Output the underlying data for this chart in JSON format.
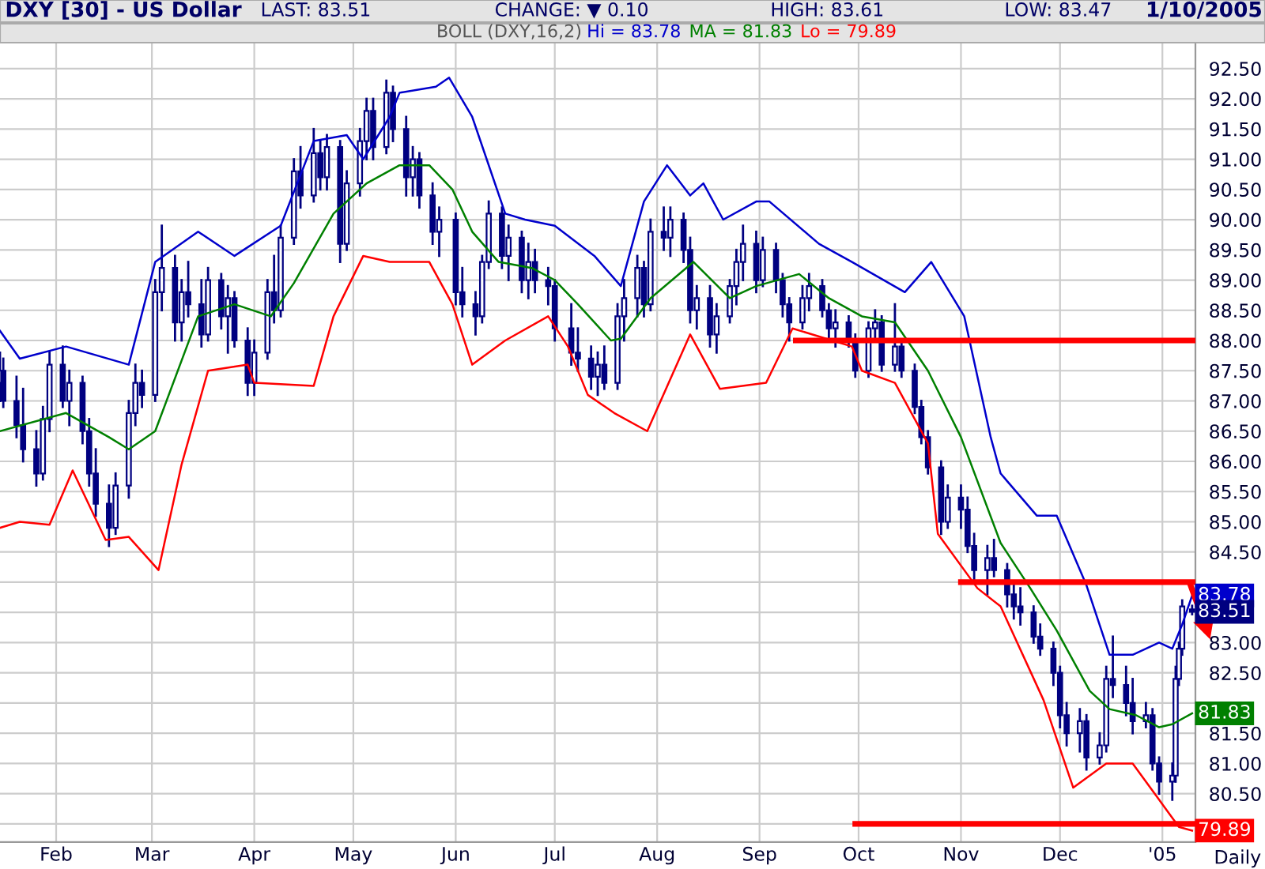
{
  "chart_data": {
    "type": "candlestick",
    "title": "DXY [30] - US Dollar",
    "subtitle": "BOLL (DXY,16,2)",
    "annotations": [
      "LAST: 83.51",
      "CHANGE: ▼ 0.10",
      "HIGH: 83.61",
      "LOW: 83.47",
      "1/10/2005",
      "Daily",
      {
        "text": "83.78",
        "x": "2005-01-10",
        "y": 83.78
      },
      {
        "text": "83.51",
        "x": "2005-01-10",
        "y": 83.51
      },
      {
        "text": "81.83",
        "x": "2005-01-10",
        "y": 81.83
      },
      {
        "text": "79.89",
        "x": "2005-01-10",
        "y": 79.89
      }
    ],
    "color": "#000080",
    "x": [
      "2004-01-15",
      "2004-01-16",
      "2004-01-20",
      "2004-01-22",
      "2004-01-26",
      "2004-01-28",
      "2004-01-30",
      "2004-02-03",
      "2004-02-05",
      "2004-02-09",
      "2004-02-11",
      "2004-02-13",
      "2004-02-17",
      "2004-02-19",
      "2004-02-23",
      "2004-02-25",
      "2004-02-27",
      "2004-03-02",
      "2004-03-04",
      "2004-03-08",
      "2004-03-10",
      "2004-03-12",
      "2004-03-16",
      "2004-03-18",
      "2004-03-22",
      "2004-03-24",
      "2004-03-26",
      "2004-03-30",
      "2004-04-01",
      "2004-04-05",
      "2004-04-07",
      "2004-04-09",
      "2004-04-13",
      "2004-04-15",
      "2004-04-19",
      "2004-04-21",
      "2004-04-23",
      "2004-04-27",
      "2004-04-29",
      "2004-05-03",
      "2004-05-05",
      "2004-05-07",
      "2004-05-11",
      "2004-05-13",
      "2004-05-17",
      "2004-05-19",
      "2004-05-21",
      "2004-05-25",
      "2004-05-27",
      "2004-06-01",
      "2004-06-03",
      "2004-06-07",
      "2004-06-09",
      "2004-06-11",
      "2004-06-15",
      "2004-06-17",
      "2004-06-21",
      "2004-06-23",
      "2004-06-25",
      "2004-06-29",
      "2004-07-01",
      "2004-07-06",
      "2004-07-08",
      "2004-07-12",
      "2004-07-14",
      "2004-07-16",
      "2004-07-20",
      "2004-07-22",
      "2004-07-26",
      "2004-07-28",
      "2004-07-30",
      "2004-08-03",
      "2004-08-05",
      "2004-08-09",
      "2004-08-11",
      "2004-08-13",
      "2004-08-17",
      "2004-08-19",
      "2004-08-23",
      "2004-08-25",
      "2004-08-27",
      "2004-08-31",
      "2004-09-02",
      "2004-09-06",
      "2004-09-08",
      "2004-09-10",
      "2004-09-14",
      "2004-09-16",
      "2004-09-20",
      "2004-09-22",
      "2004-09-24",
      "2004-09-28",
      "2004-09-30",
      "2004-10-04",
      "2004-10-06",
      "2004-10-08",
      "2004-10-12",
      "2004-10-14",
      "2004-10-18",
      "2004-10-20",
      "2004-10-22",
      "2004-10-26",
      "2004-10-28",
      "2004-11-01",
      "2004-11-03",
      "2004-11-05",
      "2004-11-09",
      "2004-11-11",
      "2004-11-15",
      "2004-11-17",
      "2004-11-19",
      "2004-11-23",
      "2004-11-25",
      "2004-11-29",
      "2004-12-01",
      "2004-12-03",
      "2004-12-07",
      "2004-12-09",
      "2004-12-13",
      "2004-12-15",
      "2004-12-17",
      "2004-12-21",
      "2004-12-23",
      "2004-12-27",
      "2004-12-29",
      "2004-12-31",
      "2005-01-04",
      "2005-01-05",
      "2005-01-06",
      "2005-01-07",
      "2005-01-10"
    ],
    "ohlc": [
      [
        87.3,
        87.8,
        87.0,
        87.5
      ],
      [
        87.5,
        87.7,
        86.9,
        87.0
      ],
      [
        87.0,
        87.4,
        86.4,
        86.6
      ],
      [
        86.6,
        87.2,
        86.0,
        86.2
      ],
      [
        86.2,
        86.5,
        85.6,
        85.8
      ],
      [
        85.8,
        86.9,
        85.7,
        86.7
      ],
      [
        86.7,
        87.8,
        86.5,
        87.6
      ],
      [
        87.6,
        87.9,
        86.9,
        87.0
      ],
      [
        87.0,
        87.5,
        86.6,
        87.3
      ],
      [
        87.3,
        87.4,
        86.3,
        86.5
      ],
      [
        86.5,
        86.7,
        85.6,
        85.8
      ],
      [
        85.8,
        86.2,
        85.1,
        85.3
      ],
      [
        85.3,
        85.6,
        84.6,
        84.9
      ],
      [
        84.9,
        85.8,
        84.8,
        85.6
      ],
      [
        85.6,
        87.0,
        85.4,
        86.8
      ],
      [
        86.8,
        87.6,
        86.6,
        87.3
      ],
      [
        87.3,
        87.5,
        86.9,
        87.1
      ],
      [
        87.1,
        89.0,
        87.0,
        88.8
      ],
      [
        88.8,
        89.9,
        88.5,
        89.2
      ],
      [
        89.2,
        89.4,
        88.0,
        88.3
      ],
      [
        88.3,
        89.0,
        88.0,
        88.8
      ],
      [
        88.8,
        89.3,
        88.4,
        88.6
      ],
      [
        88.6,
        89.0,
        87.9,
        88.1
      ],
      [
        88.1,
        89.2,
        88.0,
        89.0
      ],
      [
        89.0,
        89.1,
        88.2,
        88.4
      ],
      [
        88.4,
        88.9,
        87.8,
        88.7
      ],
      [
        88.7,
        88.8,
        87.9,
        88.0
      ],
      [
        88.0,
        88.2,
        87.1,
        87.3
      ],
      [
        87.3,
        88.0,
        87.1,
        87.8
      ],
      [
        87.8,
        89.0,
        87.7,
        88.8
      ],
      [
        88.8,
        89.4,
        88.3,
        88.5
      ],
      [
        88.5,
        89.9,
        88.4,
        89.7
      ],
      [
        89.7,
        91.0,
        89.6,
        90.8
      ],
      [
        90.8,
        91.2,
        90.2,
        90.4
      ],
      [
        90.4,
        91.5,
        90.3,
        91.1
      ],
      [
        91.1,
        91.3,
        90.5,
        90.7
      ],
      [
        90.7,
        91.4,
        90.5,
        91.2
      ],
      [
        91.2,
        91.3,
        89.3,
        89.6
      ],
      [
        89.6,
        90.8,
        89.5,
        90.6
      ],
      [
        90.6,
        91.5,
        90.4,
        91.3
      ],
      [
        91.3,
        92.0,
        91.0,
        91.8
      ],
      [
        91.8,
        92.0,
        91.0,
        91.2
      ],
      [
        91.2,
        92.3,
        91.1,
        92.1
      ],
      [
        92.1,
        92.2,
        91.3,
        91.5
      ],
      [
        91.5,
        91.7,
        90.4,
        90.7
      ],
      [
        90.7,
        91.2,
        90.4,
        91.0
      ],
      [
        91.0,
        91.1,
        90.2,
        90.4
      ],
      [
        90.4,
        90.6,
        89.6,
        89.8
      ],
      [
        89.8,
        90.2,
        89.4,
        90.0
      ],
      [
        90.0,
        90.1,
        88.6,
        88.8
      ],
      [
        88.8,
        89.2,
        88.4,
        88.6
      ],
      [
        88.6,
        88.8,
        88.1,
        88.4
      ],
      [
        88.4,
        89.4,
        88.3,
        89.3
      ],
      [
        89.3,
        90.3,
        89.2,
        90.1
      ],
      [
        90.1,
        90.2,
        89.2,
        89.4
      ],
      [
        89.4,
        89.9,
        89.0,
        89.7
      ],
      [
        89.7,
        89.8,
        88.8,
        89.0
      ],
      [
        89.0,
        89.6,
        88.7,
        89.3
      ],
      [
        89.3,
        89.5,
        88.8,
        89.0
      ],
      [
        89.0,
        89.2,
        88.6,
        88.9
      ],
      [
        88.9,
        89.0,
        88.0,
        88.2
      ],
      [
        88.2,
        88.6,
        87.6,
        87.8
      ],
      [
        87.8,
        88.2,
        87.5,
        87.7
      ],
      [
        87.7,
        87.9,
        87.2,
        87.4
      ],
      [
        87.4,
        87.8,
        87.1,
        87.6
      ],
      [
        87.6,
        87.9,
        87.2,
        87.3
      ],
      [
        87.3,
        88.6,
        87.2,
        88.4
      ],
      [
        88.4,
        89.0,
        88.0,
        88.7
      ],
      [
        88.7,
        89.4,
        88.4,
        89.2
      ],
      [
        89.2,
        89.3,
        88.4,
        88.6
      ],
      [
        88.6,
        90.0,
        88.5,
        89.8
      ],
      [
        89.8,
        90.2,
        89.5,
        89.7
      ],
      [
        89.7,
        90.2,
        89.4,
        90.0
      ],
      [
        90.0,
        90.1,
        89.3,
        89.5
      ],
      [
        89.5,
        89.7,
        88.3,
        88.5
      ],
      [
        88.5,
        88.9,
        88.2,
        88.7
      ],
      [
        88.7,
        88.9,
        87.9,
        88.1
      ],
      [
        88.1,
        88.6,
        87.8,
        88.4
      ],
      [
        88.4,
        89.0,
        88.3,
        88.9
      ],
      [
        88.9,
        89.5,
        88.6,
        89.3
      ],
      [
        89.3,
        89.9,
        89.0,
        89.6
      ],
      [
        89.6,
        89.8,
        88.8,
        89.0
      ],
      [
        89.0,
        89.7,
        88.9,
        89.5
      ],
      [
        89.5,
        89.6,
        88.8,
        89.0
      ],
      [
        89.0,
        89.1,
        88.4,
        88.6
      ],
      [
        88.6,
        88.7,
        88.0,
        88.3
      ],
      [
        88.3,
        88.9,
        88.2,
        88.7
      ],
      [
        88.7,
        89.1,
        88.5,
        88.9
      ],
      [
        88.9,
        89.0,
        88.4,
        88.5
      ],
      [
        88.5,
        88.6,
        88.0,
        88.2
      ],
      [
        88.2,
        88.5,
        87.9,
        88.3
      ],
      [
        88.3,
        88.4,
        87.9,
        88.0
      ],
      [
        88.0,
        88.1,
        87.4,
        87.5
      ],
      [
        87.5,
        88.3,
        87.4,
        88.2
      ],
      [
        88.2,
        88.5,
        88.0,
        88.3
      ],
      [
        88.3,
        88.4,
        87.5,
        87.6
      ],
      [
        87.6,
        88.6,
        87.5,
        87.9
      ],
      [
        87.9,
        88.0,
        87.4,
        87.5
      ],
      [
        87.5,
        87.6,
        86.8,
        86.9
      ],
      [
        86.9,
        87.0,
        86.3,
        86.4
      ],
      [
        86.4,
        86.5,
        85.8,
        85.9
      ],
      [
        85.9,
        86.0,
        84.8,
        85.0
      ],
      [
        85.0,
        85.6,
        84.9,
        85.4
      ],
      [
        85.4,
        85.6,
        84.9,
        85.2
      ],
      [
        85.2,
        85.4,
        84.5,
        84.6
      ],
      [
        84.6,
        84.8,
        84.0,
        84.2
      ],
      [
        84.2,
        84.6,
        83.8,
        84.4
      ],
      [
        84.4,
        84.7,
        84.1,
        84.2
      ],
      [
        84.2,
        84.3,
        83.6,
        83.8
      ],
      [
        83.8,
        84.0,
        83.4,
        83.6
      ],
      [
        83.6,
        83.9,
        83.3,
        83.5
      ],
      [
        83.5,
        83.6,
        83.0,
        83.1
      ],
      [
        83.1,
        83.3,
        82.8,
        82.9
      ],
      [
        82.9,
        83.0,
        82.3,
        82.5
      ],
      [
        82.5,
        82.6,
        81.6,
        81.8
      ],
      [
        81.8,
        82.0,
        81.3,
        81.5
      ],
      [
        81.5,
        81.9,
        81.2,
        81.7
      ],
      [
        81.7,
        81.8,
        80.9,
        81.1
      ],
      [
        81.1,
        81.5,
        81.0,
        81.3
      ],
      [
        81.3,
        82.6,
        81.2,
        82.4
      ],
      [
        82.4,
        83.1,
        82.1,
        82.3
      ],
      [
        82.3,
        82.6,
        81.8,
        82.0
      ],
      [
        82.0,
        82.4,
        81.5,
        81.7
      ],
      [
        81.7,
        82.0,
        81.6,
        81.8
      ],
      [
        81.8,
        81.9,
        80.9,
        81.0
      ],
      [
        81.0,
        81.1,
        80.5,
        80.7
      ],
      [
        80.7,
        81.0,
        80.4,
        80.8
      ],
      [
        80.8,
        82.6,
        80.7,
        82.4
      ],
      [
        82.4,
        83.0,
        82.3,
        82.9
      ],
      [
        82.9,
        83.7,
        82.8,
        83.6
      ],
      [
        83.55,
        83.61,
        83.47,
        83.51
      ]
    ],
    "series": [
      {
        "type": "line",
        "name": "Hi = 83.78",
        "color": "#0000cc",
        "x": [
          "2004-01-15",
          "2004-01-21",
          "2004-02-04",
          "2004-02-23",
          "2004-03-02",
          "2004-03-15",
          "2004-03-26",
          "2004-04-09",
          "2004-04-19",
          "2004-04-29",
          "2004-05-04",
          "2004-05-12",
          "2004-05-15",
          "2004-05-26",
          "2004-05-30",
          "2004-06-06",
          "2004-06-16",
          "2004-06-22",
          "2004-07-01",
          "2004-07-13",
          "2004-07-21",
          "2004-07-28",
          "2004-08-04",
          "2004-08-11",
          "2004-08-15",
          "2004-08-21",
          "2004-08-31",
          "2004-09-04",
          "2004-09-19",
          "2004-09-29",
          "2004-10-15",
          "2004-10-23",
          "2004-11-02",
          "2004-11-10",
          "2004-11-13",
          "2004-11-24",
          "2004-11-30",
          "2004-12-09",
          "2004-12-16",
          "2004-12-23",
          "2004-12-31",
          "2005-01-04",
          "2005-01-07",
          "2005-01-10"
        ],
        "values": [
          88.16,
          87.7,
          87.9,
          87.6,
          89.3,
          89.8,
          89.4,
          89.9,
          91.3,
          91.4,
          91.0,
          91.7,
          92.1,
          92.2,
          92.35,
          91.7,
          90.1,
          90.0,
          89.9,
          89.4,
          88.9,
          90.3,
          90.9,
          90.4,
          90.6,
          90.0,
          90.3,
          90.3,
          89.6,
          89.3,
          88.8,
          89.3,
          88.4,
          86.4,
          85.8,
          85.1,
          85.1,
          83.95,
          82.8,
          82.8,
          83.0,
          82.9,
          83.3,
          83.78
        ]
      },
      {
        "type": "line",
        "name": "MA = 81.83",
        "color": "#008000",
        "x": [
          "2004-01-15",
          "2004-02-04",
          "2004-02-17",
          "2004-02-23",
          "2004-03-02",
          "2004-03-15",
          "2004-03-26",
          "2004-04-06",
          "2004-04-13",
          "2004-04-25",
          "2004-05-05",
          "2004-05-15",
          "2004-05-24",
          "2004-05-31",
          "2004-06-06",
          "2004-06-14",
          "2004-06-24",
          "2004-07-01",
          "2004-07-08",
          "2004-07-18",
          "2004-07-21",
          "2004-07-30",
          "2004-08-12",
          "2004-08-23",
          "2004-08-31",
          "2004-09-13",
          "2004-09-22",
          "2004-10-02",
          "2004-10-12",
          "2004-10-22",
          "2004-11-01",
          "2004-11-13",
          "2004-11-22",
          "2004-11-30",
          "2004-12-10",
          "2004-12-16",
          "2004-12-24",
          "2004-12-31",
          "2005-01-04",
          "2005-01-10"
        ],
        "values": [
          86.5,
          86.8,
          86.4,
          86.2,
          86.5,
          88.4,
          88.6,
          88.4,
          88.95,
          90.1,
          90.6,
          90.9,
          90.9,
          90.5,
          89.8,
          89.3,
          89.2,
          89.0,
          88.6,
          88.0,
          88.03,
          88.7,
          89.3,
          88.7,
          88.9,
          89.1,
          88.7,
          88.4,
          88.3,
          87.5,
          86.4,
          84.65,
          83.9,
          83.2,
          82.2,
          81.9,
          81.8,
          81.6,
          81.65,
          81.83
        ]
      },
      {
        "type": "line",
        "name": "Lo = 79.89",
        "color": "#ff0000",
        "x": [
          "2004-01-15",
          "2004-01-21",
          "2004-01-30",
          "2004-02-06",
          "2004-02-16",
          "2004-02-23",
          "2004-03-03",
          "2004-03-10",
          "2004-03-18",
          "2004-03-30",
          "2004-04-01",
          "2004-04-19",
          "2004-04-25",
          "2004-05-04",
          "2004-05-12",
          "2004-05-24",
          "2004-05-31",
          "2004-06-06",
          "2004-06-16",
          "2004-06-29",
          "2004-07-05",
          "2004-07-11",
          "2004-07-19",
          "2004-07-29",
          "2004-08-11",
          "2004-08-20",
          "2004-09-03",
          "2004-09-11",
          "2004-09-29",
          "2004-10-02",
          "2004-10-12",
          "2004-10-22",
          "2004-10-25",
          "2004-11-06",
          "2004-11-13",
          "2004-11-26",
          "2004-12-05",
          "2004-12-15",
          "2004-12-23",
          "2004-12-31",
          "2005-01-06",
          "2005-01-10"
        ],
        "values": [
          84.9,
          85.0,
          84.95,
          85.85,
          84.7,
          84.75,
          84.2,
          85.95,
          87.5,
          87.6,
          87.3,
          87.25,
          88.4,
          89.4,
          89.3,
          89.3,
          88.6,
          87.6,
          88.0,
          88.4,
          87.9,
          87.1,
          86.8,
          86.5,
          88.1,
          87.2,
          87.3,
          88.2,
          87.9,
          87.5,
          87.3,
          86.3,
          84.8,
          83.9,
          83.6,
          82.05,
          80.6,
          81.0,
          81.0,
          80.4,
          79.95,
          79.89
        ]
      },
      {
        "type": "line",
        "color": "#ff0000",
        "x": [
          "2004-09-12",
          "2005-01-11"
        ],
        "values": [
          88.0,
          88.0
        ]
      },
      {
        "type": "line",
        "color": "#ff0000",
        "x": [
          "2004-11-01",
          "2005-01-11"
        ],
        "values": [
          84.0,
          84.0
        ]
      },
      {
        "type": "line",
        "color": "#ff0000",
        "x": [
          "2004-09-30",
          "2005-01-11"
        ],
        "values": [
          80.0,
          80.0
        ]
      }
    ],
    "xlim": [
      "2004-01-15",
      "2005-01-11"
    ],
    "xticks": [
      {
        "value": "2004-02-01",
        "label": "Feb"
      },
      {
        "value": "2004-03-01",
        "label": "Mar"
      },
      {
        "value": "2004-04-01",
        "label": "Apr"
      },
      {
        "value": "2004-05-01",
        "label": "May"
      },
      {
        "value": "2004-06-01",
        "label": "Jun"
      },
      {
        "value": "2004-07-01",
        "label": "Jul"
      },
      {
        "value": "2004-08-01",
        "label": "Aug"
      },
      {
        "value": "2004-09-01",
        "label": "Sep"
      },
      {
        "value": "2004-10-01",
        "label": "Oct"
      },
      {
        "value": "2004-11-01",
        "label": "Nov"
      },
      {
        "value": "2004-12-01",
        "label": "Dec"
      },
      {
        "value": "2005-01-01",
        "label": "'05"
      }
    ],
    "ylim": [
      79.7,
      92.93
    ],
    "yticks": [
      {
        "value": 80.0,
        "label": null
      },
      {
        "value": 80.5,
        "label": "80.50"
      },
      {
        "value": 81.0,
        "label": "81.00"
      },
      {
        "value": 81.5,
        "label": "81.50"
      },
      {
        "value": 82.0,
        "label": null
      },
      {
        "value": 82.5,
        "label": "82.50"
      },
      {
        "value": 83.0,
        "label": "83.00"
      },
      {
        "value": 83.5,
        "label": null
      },
      {
        "value": 84.0,
        "label": null
      },
      {
        "value": 84.5,
        "label": "84.50"
      },
      {
        "value": 85.0,
        "label": "85.00"
      },
      {
        "value": 85.5,
        "label": "85.50"
      },
      {
        "value": 86.0,
        "label": "86.00"
      },
      {
        "value": 86.5,
        "label": "86.50"
      },
      {
        "value": 87.0,
        "label": "87.00"
      },
      {
        "value": 87.5,
        "label": "87.50"
      },
      {
        "value": 88.0,
        "label": "88.00"
      },
      {
        "value": 88.5,
        "label": "88.50"
      },
      {
        "value": 89.0,
        "label": "89.00"
      },
      {
        "value": 89.5,
        "label": "89.50"
      },
      {
        "value": 90.0,
        "label": "90.00"
      },
      {
        "value": 90.5,
        "label": "90.50"
      },
      {
        "value": 91.0,
        "label": "91.00"
      },
      {
        "value": 91.5,
        "label": "91.50"
      },
      {
        "value": 92.0,
        "label": "92.00"
      },
      {
        "value": 92.5,
        "label": "92.50"
      }
    ],
    "grid": true,
    "legend": "top right"
  }
}
